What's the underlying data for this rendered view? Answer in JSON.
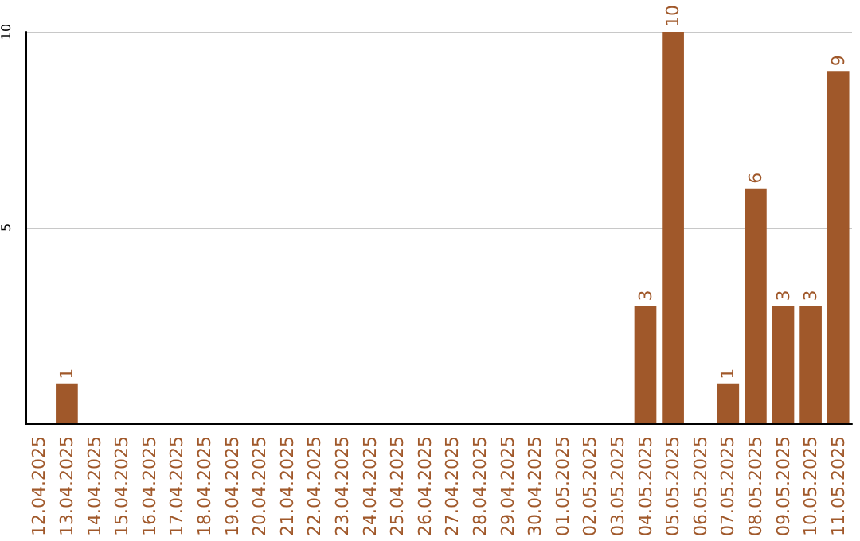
{
  "chart_data": {
    "type": "bar",
    "categories": [
      "12.04.2025",
      "13.04.2025",
      "14.04.2025",
      "15.04.2025",
      "16.04.2025",
      "17.04.2025",
      "18.04.2025",
      "19.04.2025",
      "20.04.2025",
      "21.04.2025",
      "22.04.2025",
      "23.04.2025",
      "24.04.2025",
      "25.04.2025",
      "26.04.2025",
      "27.04.2025",
      "28.04.2025",
      "29.04.2025",
      "30.04.2025",
      "01.05.2025",
      "02.05.2025",
      "03.05.2025",
      "04.05.2025",
      "05.05.2025",
      "06.05.2025",
      "07.05.2025",
      "08.05.2025",
      "09.05.2025",
      "10.05.2025",
      "11.05.2025"
    ],
    "values": [
      0,
      1,
      0,
      0,
      0,
      0,
      0,
      0,
      0,
      0,
      0,
      0,
      0,
      0,
      0,
      0,
      0,
      0,
      0,
      0,
      0,
      0,
      3,
      10,
      0,
      1,
      6,
      3,
      3,
      9
    ],
    "value_labels": [
      null,
      "1",
      null,
      null,
      null,
      null,
      null,
      null,
      null,
      null,
      null,
      null,
      null,
      null,
      null,
      null,
      null,
      null,
      null,
      null,
      null,
      null,
      "3",
      "10",
      null,
      "1",
      "6",
      "3",
      "3",
      "9"
    ],
    "color": "#a0582a",
    "ylim": [
      0,
      10
    ],
    "yticks": [
      5,
      10
    ],
    "grid": "y"
  }
}
